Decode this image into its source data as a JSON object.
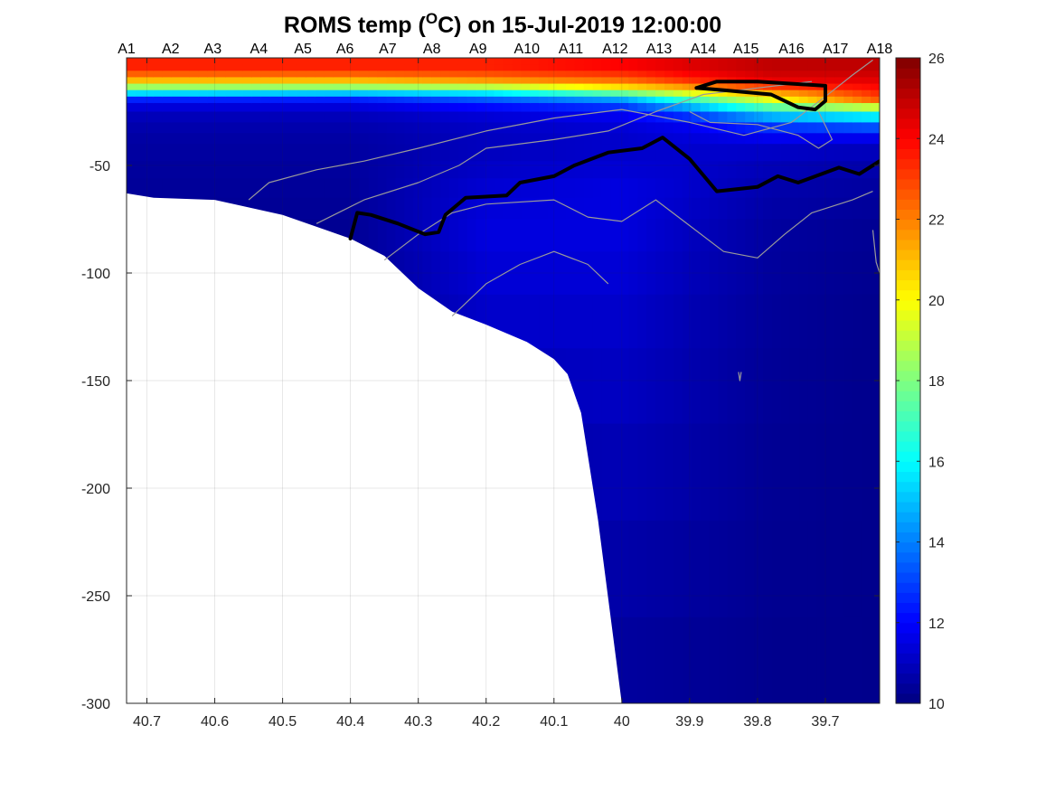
{
  "chart_data": {
    "type": "heatmap",
    "title": {
      "prefix": "ROMS temp (",
      "superscript": "O",
      "suffix": "C) on 15-Jul-2019 12:00:00"
    },
    "xlabel": "",
    "ylabel": "",
    "x_reversed": true,
    "xlim": [
      40.73,
      39.62
    ],
    "ylim": [
      -300,
      0
    ],
    "x_ticks": [
      {
        "value": 40.7,
        "label": "40.7"
      },
      {
        "value": 40.6,
        "label": "40.6"
      },
      {
        "value": 40.5,
        "label": "40.5"
      },
      {
        "value": 40.4,
        "label": "40.4"
      },
      {
        "value": 40.3,
        "label": "40.3"
      },
      {
        "value": 40.2,
        "label": "40.2"
      },
      {
        "value": 40.1,
        "label": "40.1"
      },
      {
        "value": 40.0,
        "label": "40"
      },
      {
        "value": 39.9,
        "label": "39.9"
      },
      {
        "value": 39.8,
        "label": "39.8"
      },
      {
        "value": 39.7,
        "label": "39.7"
      }
    ],
    "y_ticks": [
      {
        "value": -50,
        "label": "-50"
      },
      {
        "value": -100,
        "label": "-100"
      },
      {
        "value": -150,
        "label": "-150"
      },
      {
        "value": -200,
        "label": "-200"
      },
      {
        "value": -250,
        "label": "-250"
      },
      {
        "value": -300,
        "label": "-300"
      }
    ],
    "grid": true,
    "stations": [
      {
        "label": "A1",
        "lat": 40.73
      },
      {
        "label": "A2",
        "lat": 40.665
      },
      {
        "label": "A3",
        "lat": 40.603
      },
      {
        "label": "A4",
        "lat": 40.535
      },
      {
        "label": "A5",
        "lat": 40.47
      },
      {
        "label": "A6",
        "lat": 40.408
      },
      {
        "label": "A7",
        "lat": 40.345
      },
      {
        "label": "A8",
        "lat": 40.28
      },
      {
        "label": "A9",
        "lat": 40.212
      },
      {
        "label": "A10",
        "lat": 40.14
      },
      {
        "label": "A11",
        "lat": 40.075
      },
      {
        "label": "A12",
        "lat": 40.01
      },
      {
        "label": "A13",
        "lat": 39.945
      },
      {
        "label": "A14",
        "lat": 39.88
      },
      {
        "label": "A15",
        "lat": 39.817
      },
      {
        "label": "A16",
        "lat": 39.75
      },
      {
        "label": "A17",
        "lat": 39.685
      },
      {
        "label": "A18",
        "lat": 39.62
      }
    ],
    "colorbar": {
      "min": 10,
      "max": 26,
      "colormap": "jet",
      "ticks": [
        {
          "value": 10,
          "label": "10"
        },
        {
          "value": 12,
          "label": "12"
        },
        {
          "value": 14,
          "label": "14"
        },
        {
          "value": 16,
          "label": "16"
        },
        {
          "value": 18,
          "label": "18"
        },
        {
          "value": 20,
          "label": "20"
        },
        {
          "value": 22,
          "label": "22"
        },
        {
          "value": 24,
          "label": "24"
        },
        {
          "value": 26,
          "label": "26"
        }
      ]
    },
    "bottom_profile": [
      {
        "lat": 40.73,
        "depth": -63
      },
      {
        "lat": 40.69,
        "depth": -65
      },
      {
        "lat": 40.6,
        "depth": -66
      },
      {
        "lat": 40.5,
        "depth": -73
      },
      {
        "lat": 40.4,
        "depth": -84
      },
      {
        "lat": 40.35,
        "depth": -92
      },
      {
        "lat": 40.3,
        "depth": -107
      },
      {
        "lat": 40.25,
        "depth": -118
      },
      {
        "lat": 40.2,
        "depth": -124
      },
      {
        "lat": 40.14,
        "depth": -132
      },
      {
        "lat": 40.1,
        "depth": -140
      },
      {
        "lat": 40.08,
        "depth": -147
      },
      {
        "lat": 40.06,
        "depth": -165
      },
      {
        "lat": 40.035,
        "depth": -215
      },
      {
        "lat": 40.0,
        "depth": -300
      }
    ],
    "temperature_profiles": {
      "surface_depths": [
        -5,
        -10,
        -13,
        -16,
        -20,
        -25,
        -30,
        -35,
        -45,
        -60,
        -80,
        -120,
        -200,
        -300
      ],
      "columns": [
        {
          "lat": 40.73,
          "temps": [
            23.5,
            21.5,
            19.0,
            16.0,
            12.0,
            11.0,
            10.8,
            10.6,
            10.5,
            10.4,
            10.3,
            10.2,
            10.2,
            10.2
          ]
        },
        {
          "lat": 40.4,
          "temps": [
            23.5,
            21.5,
            19.0,
            15.5,
            12.0,
            11.0,
            10.8,
            10.6,
            10.5,
            10.4,
            10.3,
            10.2,
            10.2,
            10.2
          ]
        },
        {
          "lat": 40.2,
          "temps": [
            23.5,
            22.0,
            19.5,
            16.0,
            13.0,
            11.5,
            11.2,
            11.0,
            11.0,
            11.3,
            11.5,
            11.2,
            10.6,
            10.3
          ]
        },
        {
          "lat": 40.0,
          "temps": [
            24.0,
            22.5,
            21.0,
            18.0,
            14.0,
            12.0,
            11.5,
            11.2,
            11.2,
            11.5,
            11.5,
            11.2,
            10.8,
            10.4
          ]
        },
        {
          "lat": 39.9,
          "temps": [
            24.5,
            23.5,
            22.0,
            20.0,
            16.5,
            13.5,
            12.0,
            11.5,
            11.2,
            11.2,
            11.0,
            10.8,
            10.6,
            10.3
          ]
        },
        {
          "lat": 39.78,
          "temps": [
            25.0,
            24.5,
            23.5,
            21.5,
            19.5,
            16.0,
            13.5,
            12.0,
            11.0,
            10.7,
            10.5,
            10.4,
            10.3,
            10.2
          ]
        },
        {
          "lat": 39.62,
          "temps": [
            25.0,
            24.5,
            24.0,
            23.5,
            22.5,
            17.0,
            14.5,
            12.0,
            10.8,
            10.5,
            10.3,
            10.2,
            10.2,
            10.2
          ]
        }
      ]
    },
    "contours": {
      "black_thick": [
        [
          {
            "lat": 40.4,
            "depth": -84
          },
          {
            "lat": 40.39,
            "depth": -72
          },
          {
            "lat": 40.37,
            "depth": -73
          },
          {
            "lat": 40.33,
            "depth": -77
          },
          {
            "lat": 40.29,
            "depth": -82
          },
          {
            "lat": 40.27,
            "depth": -81
          },
          {
            "lat": 40.26,
            "depth": -73
          },
          {
            "lat": 40.23,
            "depth": -65
          },
          {
            "lat": 40.17,
            "depth": -64
          },
          {
            "lat": 40.15,
            "depth": -58
          },
          {
            "lat": 40.1,
            "depth": -55
          },
          {
            "lat": 40.07,
            "depth": -50
          },
          {
            "lat": 40.02,
            "depth": -44
          },
          {
            "lat": 39.97,
            "depth": -42
          },
          {
            "lat": 39.94,
            "depth": -37
          },
          {
            "lat": 39.9,
            "depth": -47
          },
          {
            "lat": 39.86,
            "depth": -62
          },
          {
            "lat": 39.8,
            "depth": -60
          },
          {
            "lat": 39.77,
            "depth": -55
          },
          {
            "lat": 39.74,
            "depth": -58
          },
          {
            "lat": 39.68,
            "depth": -51
          },
          {
            "lat": 39.65,
            "depth": -54
          },
          {
            "lat": 39.62,
            "depth": -48
          }
        ],
        [
          {
            "lat": 39.89,
            "depth": -14
          },
          {
            "lat": 39.86,
            "depth": -11
          },
          {
            "lat": 39.8,
            "depth": -11
          },
          {
            "lat": 39.7,
            "depth": -13
          },
          {
            "lat": 39.7,
            "depth": -20
          },
          {
            "lat": 39.715,
            "depth": -24
          },
          {
            "lat": 39.74,
            "depth": -23
          },
          {
            "lat": 39.78,
            "depth": -17
          },
          {
            "lat": 39.85,
            "depth": -15
          },
          {
            "lat": 39.89,
            "depth": -14
          }
        ]
      ],
      "gray_thin": [
        [
          {
            "lat": 40.55,
            "depth": -66
          },
          {
            "lat": 40.52,
            "depth": -58
          },
          {
            "lat": 40.45,
            "depth": -52
          },
          {
            "lat": 40.38,
            "depth": -48
          },
          {
            "lat": 40.3,
            "depth": -42
          },
          {
            "lat": 40.2,
            "depth": -34
          },
          {
            "lat": 40.1,
            "depth": -28
          },
          {
            "lat": 40.0,
            "depth": -24
          },
          {
            "lat": 39.9,
            "depth": -30
          },
          {
            "lat": 39.82,
            "depth": -36
          },
          {
            "lat": 39.75,
            "depth": -30
          },
          {
            "lat": 39.7,
            "depth": -18
          },
          {
            "lat": 39.66,
            "depth": -8
          },
          {
            "lat": 39.63,
            "depth": -1
          }
        ],
        [
          {
            "lat": 40.45,
            "depth": -77
          },
          {
            "lat": 40.38,
            "depth": -66
          },
          {
            "lat": 40.3,
            "depth": -58
          },
          {
            "lat": 40.24,
            "depth": -50
          },
          {
            "lat": 40.2,
            "depth": -42
          },
          {
            "lat": 40.1,
            "depth": -38
          },
          {
            "lat": 40.02,
            "depth": -34
          },
          {
            "lat": 39.95,
            "depth": -25
          },
          {
            "lat": 39.88,
            "depth": -17
          },
          {
            "lat": 39.8,
            "depth": -14
          },
          {
            "lat": 39.72,
            "depth": -11
          }
        ],
        [
          {
            "lat": 40.35,
            "depth": -94
          },
          {
            "lat": 40.3,
            "depth": -82
          },
          {
            "lat": 40.25,
            "depth": -72
          },
          {
            "lat": 40.2,
            "depth": -68
          },
          {
            "lat": 40.1,
            "depth": -66
          },
          {
            "lat": 40.05,
            "depth": -74
          },
          {
            "lat": 40.0,
            "depth": -76
          },
          {
            "lat": 39.95,
            "depth": -66
          },
          {
            "lat": 39.9,
            "depth": -78
          },
          {
            "lat": 39.85,
            "depth": -90
          },
          {
            "lat": 39.8,
            "depth": -93
          },
          {
            "lat": 39.76,
            "depth": -82
          },
          {
            "lat": 39.72,
            "depth": -72
          },
          {
            "lat": 39.66,
            "depth": -66
          },
          {
            "lat": 39.63,
            "depth": -62
          }
        ],
        [
          {
            "lat": 40.25,
            "depth": -120
          },
          {
            "lat": 40.2,
            "depth": -105
          },
          {
            "lat": 40.15,
            "depth": -96
          },
          {
            "lat": 40.1,
            "depth": -90
          },
          {
            "lat": 40.05,
            "depth": -96
          },
          {
            "lat": 40.02,
            "depth": -105
          }
        ],
        [
          {
            "lat": 39.9,
            "depth": -25
          },
          {
            "lat": 39.87,
            "depth": -30
          },
          {
            "lat": 39.8,
            "depth": -31
          },
          {
            "lat": 39.74,
            "depth": -36
          },
          {
            "lat": 39.71,
            "depth": -42
          },
          {
            "lat": 39.69,
            "depth": -38
          },
          {
            "lat": 39.71,
            "depth": -25
          }
        ],
        [
          {
            "lat": 39.63,
            "depth": -80
          },
          {
            "lat": 39.625,
            "depth": -95
          },
          {
            "lat": 39.62,
            "depth": -100
          }
        ],
        [
          {
            "lat": 39.828,
            "depth": -146
          },
          {
            "lat": 39.826,
            "depth": -150
          },
          {
            "lat": 39.824,
            "depth": -146
          }
        ]
      ]
    }
  }
}
